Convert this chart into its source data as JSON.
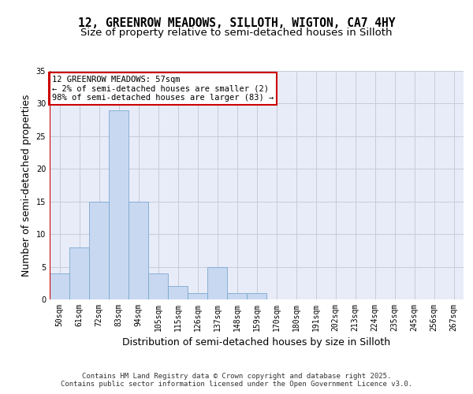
{
  "title_line1": "12, GREENROW MEADOWS, SILLOTH, WIGTON, CA7 4HY",
  "title_line2": "Size of property relative to semi-detached houses in Silloth",
  "xlabel": "Distribution of semi-detached houses by size in Silloth",
  "ylabel": "Number of semi-detached properties",
  "bin_labels": [
    "50sqm",
    "61sqm",
    "72sqm",
    "83sqm",
    "94sqm",
    "105sqm",
    "115sqm",
    "126sqm",
    "137sqm",
    "148sqm",
    "159sqm",
    "170sqm",
    "180sqm",
    "191sqm",
    "202sqm",
    "213sqm",
    "224sqm",
    "235sqm",
    "245sqm",
    "256sqm",
    "267sqm"
  ],
  "bar_values": [
    4,
    8,
    15,
    29,
    15,
    4,
    2,
    1,
    5,
    1,
    1,
    0,
    0,
    0,
    0,
    0,
    0,
    0,
    0,
    0,
    0
  ],
  "bar_color": "#c8d8f0",
  "bar_edge_color": "#7aa8d0",
  "highlight_color": "#cc0000",
  "annotation_text": "12 GREENROW MEADOWS: 57sqm\n← 2% of semi-detached houses are smaller (2)\n98% of semi-detached houses are larger (83) →",
  "annotation_box_color": "#ffffff",
  "annotation_border_color": "#cc0000",
  "footer_text": "Contains HM Land Registry data © Crown copyright and database right 2025.\nContains public sector information licensed under the Open Government Licence v3.0.",
  "ylim": [
    0,
    35
  ],
  "yticks": [
    0,
    5,
    10,
    15,
    20,
    25,
    30,
    35
  ],
  "background_color": "#e8ecf8",
  "grid_color": "#c8ccd8",
  "title_fontsize": 10.5,
  "subtitle_fontsize": 9.5,
  "axis_label_fontsize": 9,
  "tick_fontsize": 7,
  "footer_fontsize": 6.5,
  "annotation_fontsize": 7.5
}
